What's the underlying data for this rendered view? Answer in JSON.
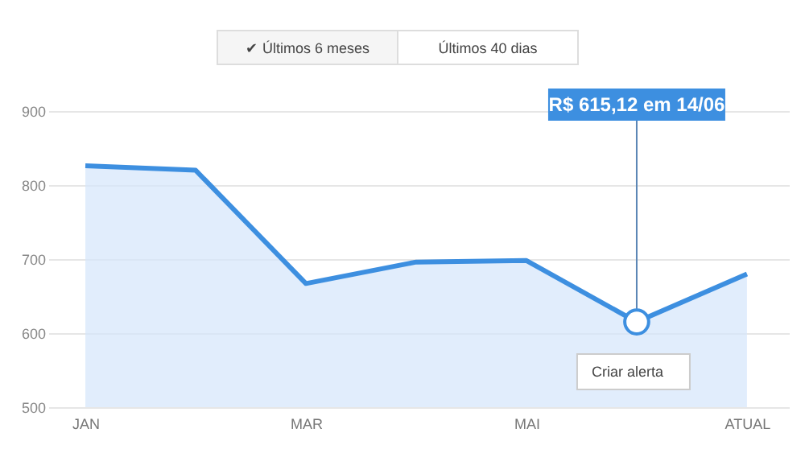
{
  "chart_data": {
    "type": "area",
    "categories": [
      "JAN",
      null,
      "MAR",
      null,
      "MAI",
      null,
      "ATUAL"
    ],
    "series": [
      {
        "color": "#3d8fe0",
        "values": [
          826,
          820,
          667,
          696,
          698,
          615.12,
          680
        ]
      }
    ],
    "ylim": [
      500,
      900
    ],
    "yticks": [
      500,
      600,
      700,
      800,
      900
    ],
    "grid": "y",
    "annotations": [
      {
        "text": "R$ 615,12 em 14/06",
        "y": 615.12
      },
      "Criar alerta",
      "✔ Últimos 6 meses",
      "Últimos 40 dias"
    ]
  }
}
